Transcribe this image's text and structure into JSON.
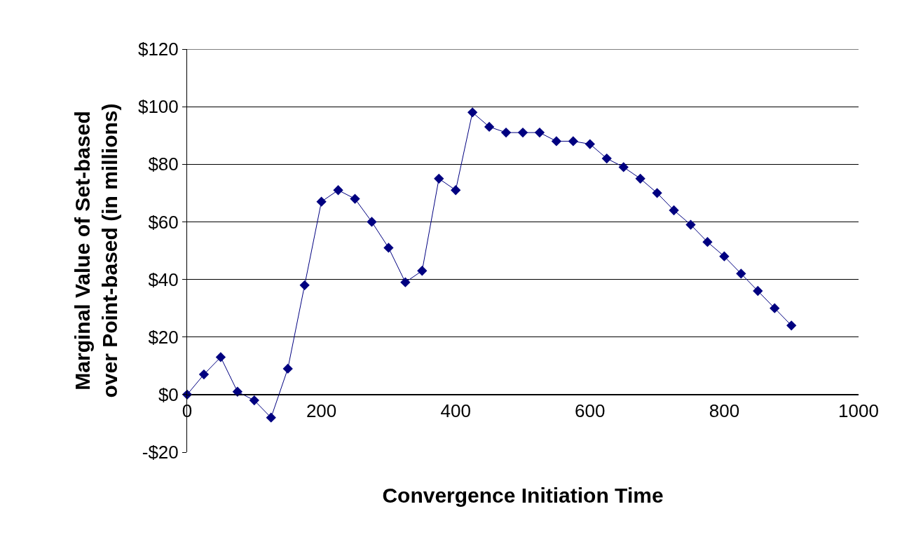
{
  "chart_data": {
    "type": "line",
    "xlabel": "Convergence Initiation Time",
    "ylabel": "Marginal Value of Set-based over Point-based (in millions)",
    "x": [
      0,
      25,
      50,
      75,
      100,
      125,
      150,
      175,
      200,
      225,
      250,
      275,
      300,
      325,
      350,
      375,
      400,
      425,
      450,
      475,
      500,
      525,
      550,
      575,
      600,
      625,
      650,
      675,
      700,
      725,
      750,
      775,
      800,
      825,
      850,
      875,
      900
    ],
    "series": [
      {
        "color": "#000080",
        "values": [
          0,
          7,
          13,
          1,
          -2,
          -8,
          9,
          38,
          67,
          71,
          68,
          60,
          51,
          39,
          43,
          75,
          71,
          98,
          93,
          91,
          91,
          91,
          88,
          88,
          87,
          82,
          79,
          75,
          70,
          64,
          59,
          53,
          48,
          42,
          36,
          30,
          24
        ]
      }
    ],
    "xlim": [
      0,
      1000
    ],
    "xticks": [
      0,
      200,
      400,
      600,
      800,
      1000
    ],
    "ylim": [
      -20,
      120
    ],
    "yticks": [
      {
        "value": -20,
        "label": "-$20"
      },
      {
        "value": 0,
        "label": "$0"
      },
      {
        "value": 20,
        "label": "$20"
      },
      {
        "value": 40,
        "label": "$40"
      },
      {
        "value": 60,
        "label": "$60"
      },
      {
        "value": 80,
        "label": "$80"
      },
      {
        "value": 100,
        "label": "$100"
      },
      {
        "value": 120,
        "label": "$120"
      }
    ],
    "grid": "y",
    "marker": "diamond",
    "line_style": "solid"
  }
}
